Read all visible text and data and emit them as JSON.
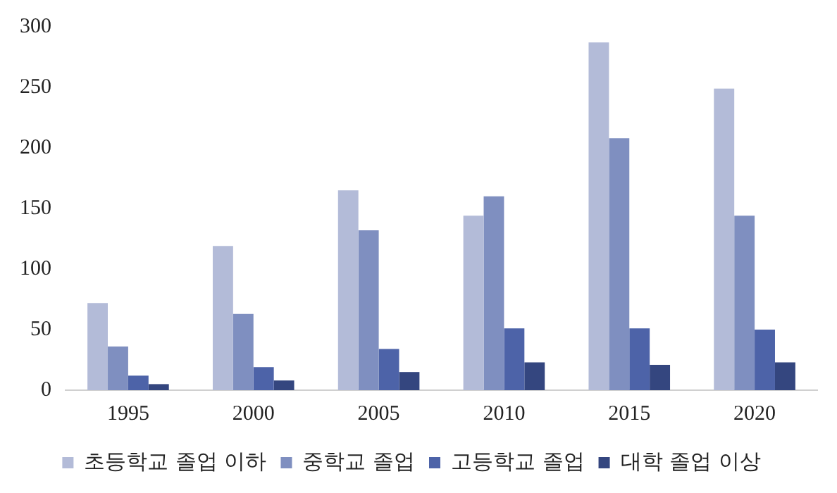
{
  "chart_data": {
    "type": "bar",
    "categories": [
      "1995",
      "2000",
      "2005",
      "2010",
      "2015",
      "2020"
    ],
    "series": [
      {
        "name": "초등학교 졸업 이하",
        "color": "#b3bbd8",
        "values": [
          72,
          119,
          165,
          144,
          287,
          249
        ]
      },
      {
        "name": "중학교 졸업",
        "color": "#7f8fc0",
        "values": [
          36,
          63,
          132,
          160,
          208,
          144
        ]
      },
      {
        "name": "고등학교 졸업",
        "color": "#4d63a8",
        "values": [
          12,
          19,
          34,
          51,
          51,
          50
        ]
      },
      {
        "name": "대학 졸업 이상",
        "color": "#34467f",
        "values": [
          5,
          8,
          15,
          23,
          21,
          23
        ]
      }
    ],
    "ylim": [
      0,
      300
    ],
    "yticks": [
      0,
      50,
      100,
      150,
      200,
      250,
      300
    ],
    "grid": false,
    "legend": "bottom"
  }
}
